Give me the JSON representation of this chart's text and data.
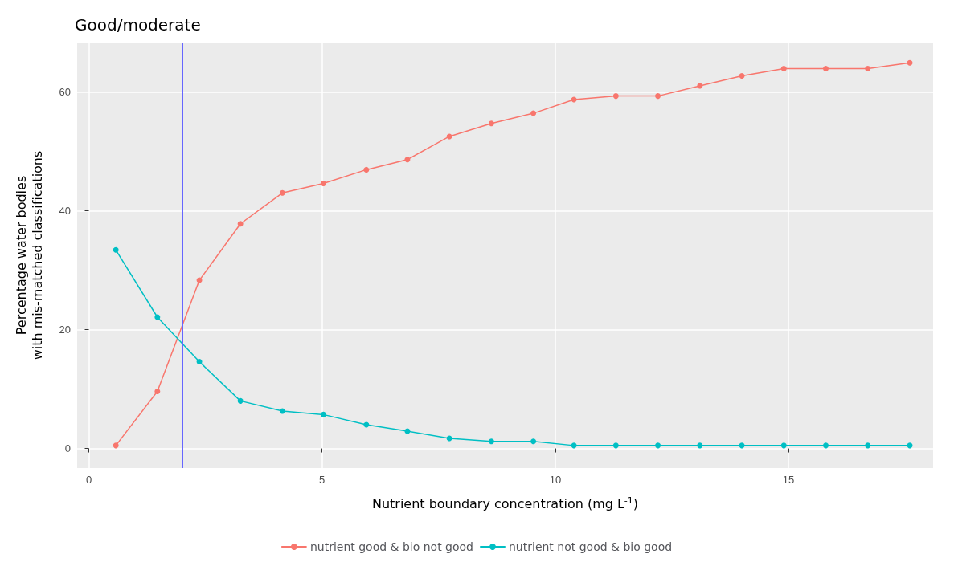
{
  "chart_data": {
    "type": "line",
    "title": "Good/moderate",
    "xlabel": "Nutrient boundary concentration (mg L$^{-1}$)",
    "ylabel": "Percentage water bodies\nwith mis-matched classifications",
    "x": [
      0.58,
      1.47,
      2.37,
      3.25,
      4.15,
      5.03,
      5.95,
      6.83,
      7.73,
      8.63,
      9.53,
      10.4,
      11.3,
      12.2,
      13.1,
      14.0,
      14.9,
      15.8,
      16.7,
      17.6
    ],
    "series": [
      {
        "name": "nutrient good & bio not good",
        "color": "#f8766d",
        "values": [
          0.5,
          9.6,
          28.3,
          37.8,
          43.0,
          44.6,
          46.9,
          48.6,
          52.5,
          54.7,
          56.4,
          58.7,
          59.3,
          59.3,
          61.0,
          62.7,
          63.9,
          63.9,
          63.9,
          64.9
        ]
      },
      {
        "name": "nutrient not good & bio good",
        "color": "#00bfc4",
        "values": [
          33.4,
          22.1,
          14.6,
          8.0,
          6.3,
          5.7,
          4.0,
          2.9,
          1.7,
          1.2,
          1.2,
          0.5,
          0.5,
          0.5,
          0.5,
          0.5,
          0.5,
          0.5,
          0.5,
          0.5
        ]
      }
    ],
    "xlim": [
      -0.25,
      18.1
    ],
    "xticks": [
      0,
      5,
      10,
      15
    ],
    "ylim": [
      -3.3,
      68.3
    ],
    "yticks": [
      0,
      20,
      40,
      60
    ],
    "ref_lines": [
      {
        "axis": "x",
        "value": 2,
        "color": "#6666ff"
      }
    ],
    "grid": true,
    "legend": "bottom",
    "marker": "circle",
    "line_style": "solid"
  }
}
